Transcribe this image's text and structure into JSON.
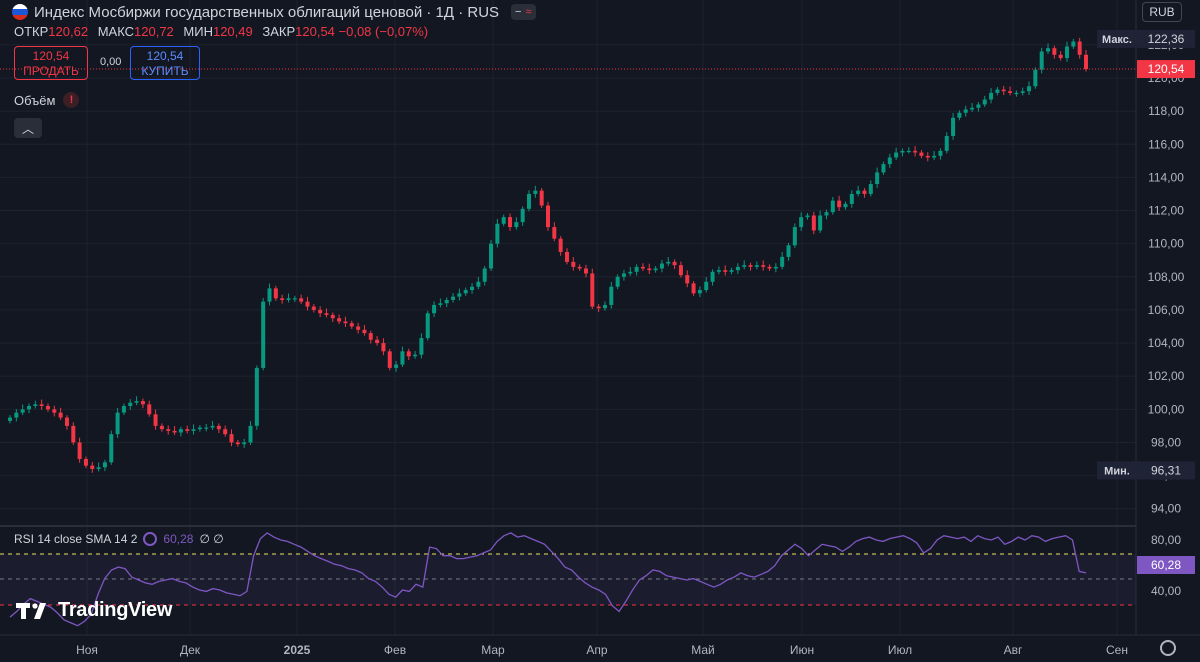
{
  "header": {
    "title": "Индекс Мосбиржи государственных облигаций ценовой · 1Д · RUS",
    "ohlc": [
      {
        "label": "ОТКР",
        "value": "120,62"
      },
      {
        "label": "МАКС",
        "value": "120,72"
      },
      {
        "label": "МИН",
        "value": "120,49"
      },
      {
        "label": "ЗАКР",
        "value": "120,54 −0,08 (−0,07%)"
      }
    ],
    "currency_button": "RUB"
  },
  "trade": {
    "sell_price": "120,54",
    "sell_label": "ПРОДАТЬ",
    "spread": "0,00",
    "buy_price": "120,54",
    "buy_label": "КУПИТЬ"
  },
  "volume_label": "Объём",
  "rsi": {
    "legend": "RSI 14 close SMA 14 2",
    "value": "60,28",
    "extra": "∅ ∅"
  },
  "logo_text": "TradingView",
  "colors": {
    "up": "#089981",
    "down": "#f23645",
    "rsi_line": "#7e57c2",
    "background": "#131722"
  },
  "chart_data": {
    "type": "candlestick",
    "y_axis": {
      "ticks": [
        "94,00",
        "96,00",
        "98,00",
        "100,00",
        "102,00",
        "104,00",
        "106,00",
        "108,00",
        "110,00",
        "112,00",
        "114,00",
        "116,00",
        "118,00",
        "120,00",
        "122,00"
      ],
      "range": [
        93.5,
        123.5
      ]
    },
    "x_axis": {
      "labels": [
        "Ноя",
        "Дек",
        "2025",
        "Фев",
        "Мар",
        "Апр",
        "Май",
        "Июн",
        "Июл",
        "Авг",
        "Сен"
      ]
    },
    "markers": {
      "max": {
        "label": "Макс.",
        "value": "122,36",
        "y": 122.36
      },
      "min": {
        "label": "Мин.",
        "value": "96,31",
        "y": 96.31
      },
      "last": {
        "value": "120,54",
        "y": 120.54
      }
    },
    "closes": [
      99.5,
      99.8,
      100.0,
      100.2,
      100.3,
      100.2,
      100.0,
      99.8,
      99.5,
      99.0,
      98.0,
      97.0,
      96.6,
      96.4,
      96.5,
      96.8,
      98.5,
      99.8,
      100.2,
      100.4,
      100.5,
      100.3,
      99.7,
      99.0,
      98.8,
      98.7,
      98.6,
      98.8,
      98.7,
      98.8,
      98.9,
      98.9,
      99.0,
      98.8,
      98.5,
      98.0,
      97.9,
      98.0,
      99.0,
      102.5,
      106.5,
      107.3,
      106.7,
      106.6,
      106.7,
      106.7,
      106.5,
      106.2,
      106.0,
      105.8,
      105.7,
      105.5,
      105.3,
      105.2,
      105.0,
      104.8,
      104.6,
      104.2,
      104.0,
      103.5,
      102.5,
      102.7,
      103.5,
      103.2,
      103.3,
      104.3,
      105.8,
      106.3,
      106.4,
      106.6,
      106.8,
      107.0,
      107.2,
      107.4,
      107.7,
      108.5,
      110.0,
      111.2,
      111.6,
      111.0,
      111.3,
      112.1,
      113.0,
      113.2,
      112.3,
      111.0,
      110.3,
      109.5,
      108.9,
      108.6,
      108.5,
      108.2,
      106.2,
      106.1,
      106.3,
      107.4,
      108.0,
      108.2,
      108.3,
      108.6,
      108.5,
      108.4,
      108.5,
      108.8,
      108.9,
      108.7,
      108.1,
      107.6,
      107.0,
      107.2,
      107.7,
      108.3,
      108.4,
      108.3,
      108.4,
      108.6,
      108.7,
      108.6,
      108.7,
      108.6,
      108.5,
      108.6,
      109.2,
      109.9,
      111.0,
      111.6,
      111.7,
      110.8,
      111.7,
      111.9,
      112.6,
      112.2,
      112.4,
      113.0,
      113.2,
      113.0,
      113.6,
      114.3,
      114.8,
      115.2,
      115.5,
      115.6,
      115.6,
      115.5,
      115.3,
      115.2,
      115.3,
      115.6,
      116.5,
      117.6,
      117.9,
      118.1,
      118.2,
      118.4,
      118.7,
      119.1,
      119.3,
      119.2,
      119.1,
      119.1,
      119.2,
      119.5,
      120.5,
      121.6,
      121.8,
      121.4,
      121.2,
      121.9,
      122.2,
      121.4,
      120.54
    ],
    "rsi": {
      "levels": [
        80,
        40
      ],
      "levels_labels": [
        "80,00",
        "40,00"
      ],
      "last": 60.28,
      "values": [
        29,
        33,
        38,
        42,
        40,
        38,
        36,
        32,
        27,
        25,
        23,
        26,
        31,
        45,
        56,
        62,
        64,
        63,
        57,
        55,
        53,
        52,
        54,
        55,
        56,
        54,
        53,
        50,
        48,
        47,
        49,
        48,
        46,
        45,
        44,
        47,
        72,
        84,
        88,
        85,
        83,
        82,
        80,
        78,
        75,
        72,
        70,
        68,
        66,
        65,
        63,
        62,
        60,
        56,
        54,
        50,
        45,
        43,
        48,
        47,
        52,
        50,
        78,
        77,
        72,
        72,
        70,
        70,
        71,
        72,
        74,
        76,
        82,
        86,
        88,
        85,
        86,
        84,
        82,
        80,
        75,
        70,
        64,
        62,
        57,
        53,
        50,
        48,
        45,
        37,
        33,
        40,
        48,
        55,
        58,
        62,
        61,
        58,
        57,
        56,
        55,
        56,
        54,
        52,
        50,
        52,
        55,
        57,
        60,
        58,
        57,
        59,
        61,
        65,
        72,
        76,
        80,
        77,
        72,
        76,
        80,
        79,
        78,
        75,
        78,
        82,
        84,
        85,
        83,
        82,
        84,
        85,
        86,
        84,
        81,
        74,
        77,
        83,
        86,
        85,
        84,
        85,
        82,
        86,
        84,
        83,
        85,
        80,
        82,
        85,
        83,
        86,
        85,
        82,
        84,
        85,
        86,
        83,
        61,
        60
      ]
    }
  }
}
